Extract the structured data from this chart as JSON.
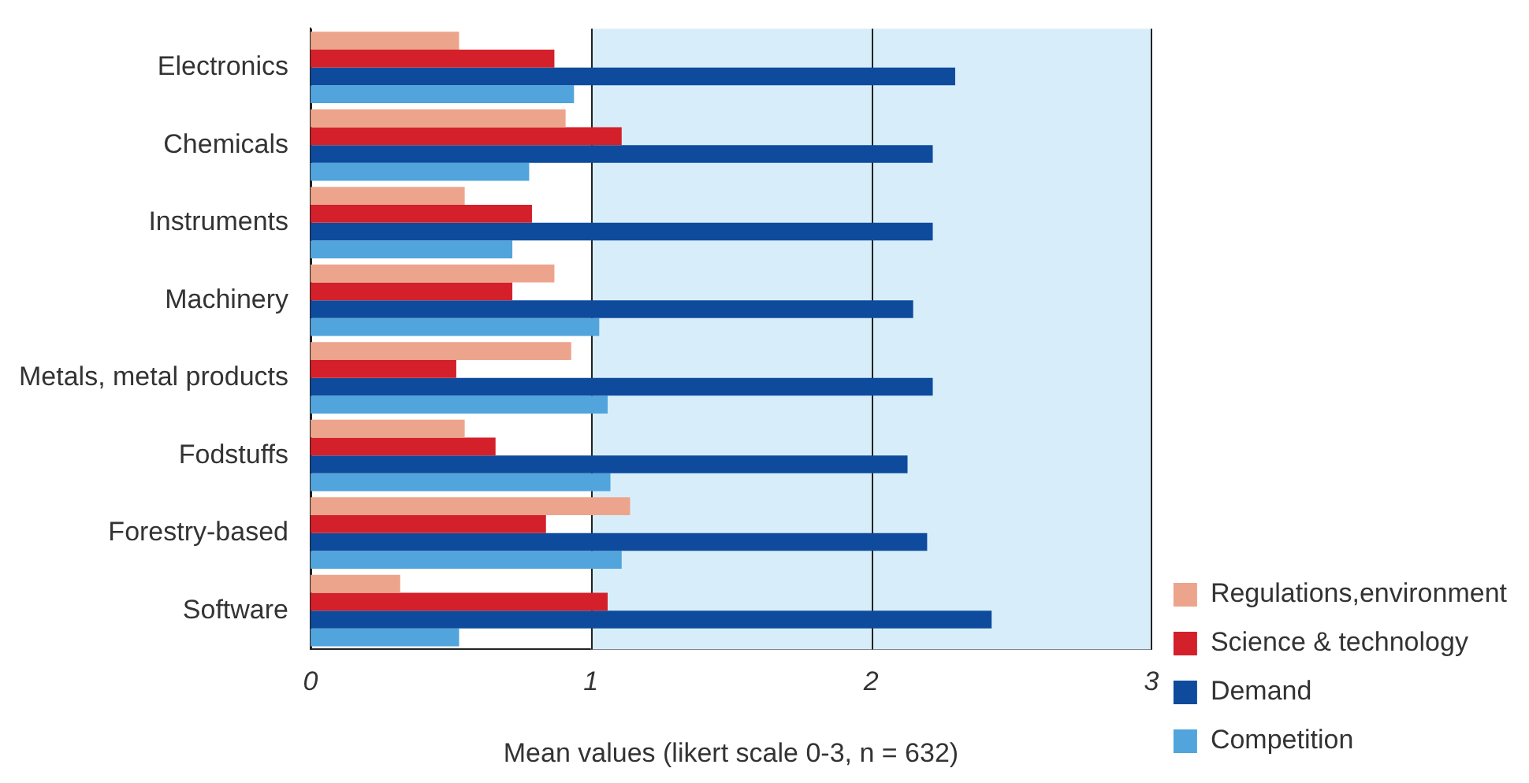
{
  "chart_data": {
    "type": "bar",
    "orientation": "horizontal",
    "xlabel": "Mean values (likert scale 0-3, n = 632)",
    "categories": [
      "Electronics",
      "Chemicals",
      "Instruments",
      "Machinery",
      "Metals, metal products",
      "Fodstuffs",
      "Forestry-based",
      "Software"
    ],
    "series": [
      {
        "name": "Regulations,environment",
        "color": "#eda48c",
        "values": [
          0.53,
          0.91,
          0.55,
          0.87,
          0.93,
          0.55,
          1.14,
          0.32
        ]
      },
      {
        "name": "Science & technology",
        "color": "#d3202a",
        "values": [
          0.87,
          1.11,
          0.79,
          0.72,
          0.52,
          0.66,
          0.84,
          1.06
        ]
      },
      {
        "name": "Demand",
        "color": "#0e4b9d",
        "values": [
          2.3,
          2.22,
          2.22,
          2.15,
          2.22,
          2.13,
          2.2,
          2.43
        ]
      },
      {
        "name": "Competition",
        "color": "#51a4dc",
        "values": [
          0.94,
          0.78,
          0.72,
          1.03,
          1.06,
          1.07,
          1.11,
          0.53
        ]
      }
    ],
    "xlim": [
      0,
      3
    ],
    "xticks": [
      0,
      1,
      2,
      3
    ],
    "grid": "x",
    "legend": "bottom right",
    "bands": [
      {
        "axis": "x",
        "from": 1,
        "to": 3,
        "color": "#d7eefa"
      }
    ]
  }
}
